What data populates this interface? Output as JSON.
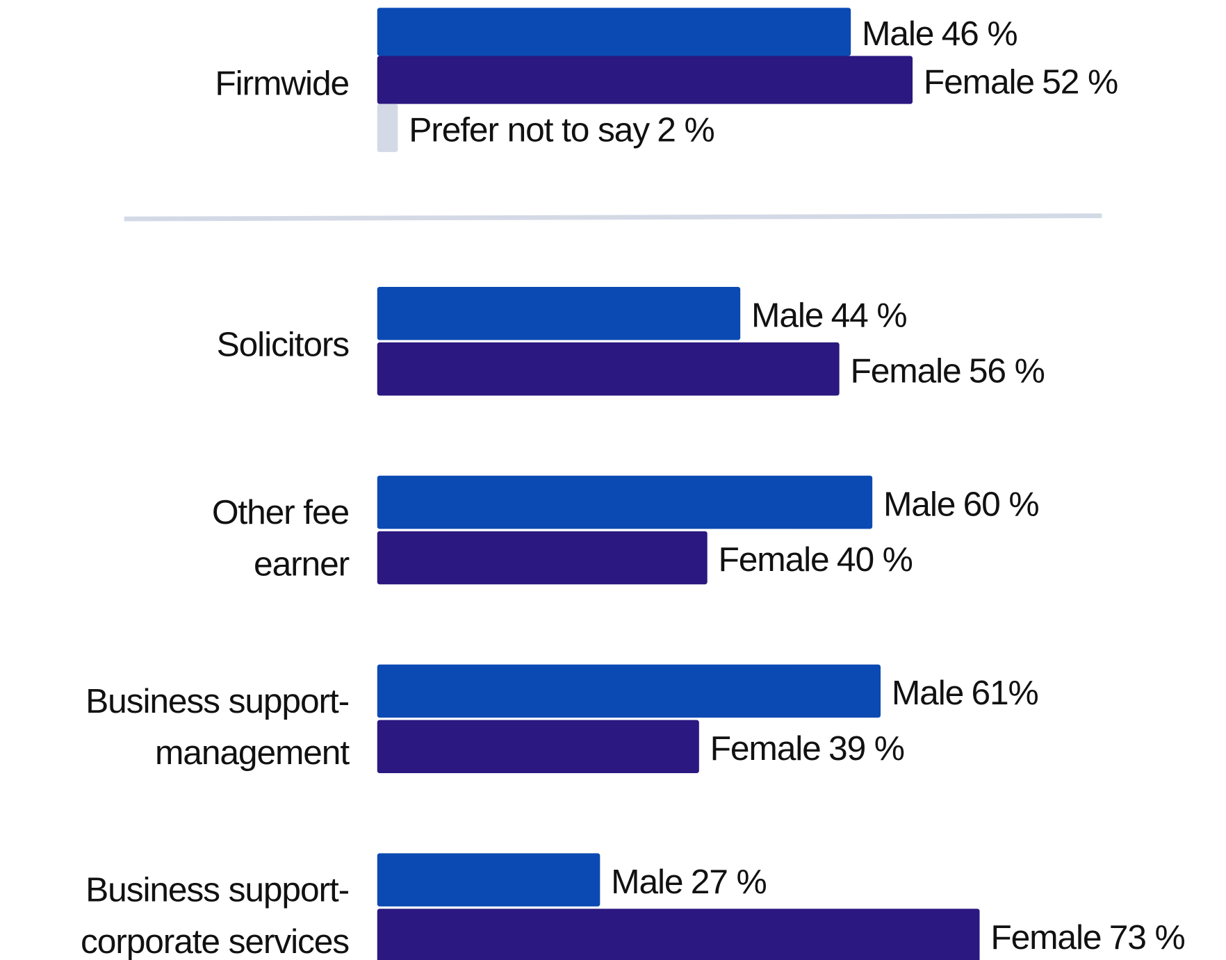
{
  "chart_data": [
    {
      "type": "bar",
      "categories": [
        "Firmwide"
      ],
      "series": [
        {
          "name": "Male",
          "color": "#0b4ab3",
          "values": [
            46
          ],
          "value_labels": [
            "46 %"
          ]
        },
        {
          "name": "Female",
          "color": "#2b1880",
          "values": [
            52
          ],
          "value_labels": [
            "52 %"
          ]
        },
        {
          "name": "Prefer not to say",
          "color": "#d4d9e6",
          "values": [
            2
          ],
          "value_labels": [
            "2 %"
          ]
        }
      ]
    },
    {
      "type": "bar",
      "categories": [
        "Solicitors",
        [
          "Other fee",
          "earner"
        ],
        [
          "Business support-",
          "management"
        ],
        [
          "Business support-",
          "corporate services"
        ]
      ],
      "series": [
        {
          "name": "Male",
          "color": "#0b4ab3",
          "values": [
            44,
            60,
            61,
            27
          ],
          "value_labels": [
            "44 %",
            "60 %",
            "61%",
            "27 %"
          ]
        },
        {
          "name": "Female",
          "color": "#2b1880",
          "values": [
            56,
            40,
            39,
            73
          ],
          "value_labels": [
            "56 %",
            "40 %",
            "39 %",
            "73 %"
          ]
        }
      ]
    }
  ]
}
